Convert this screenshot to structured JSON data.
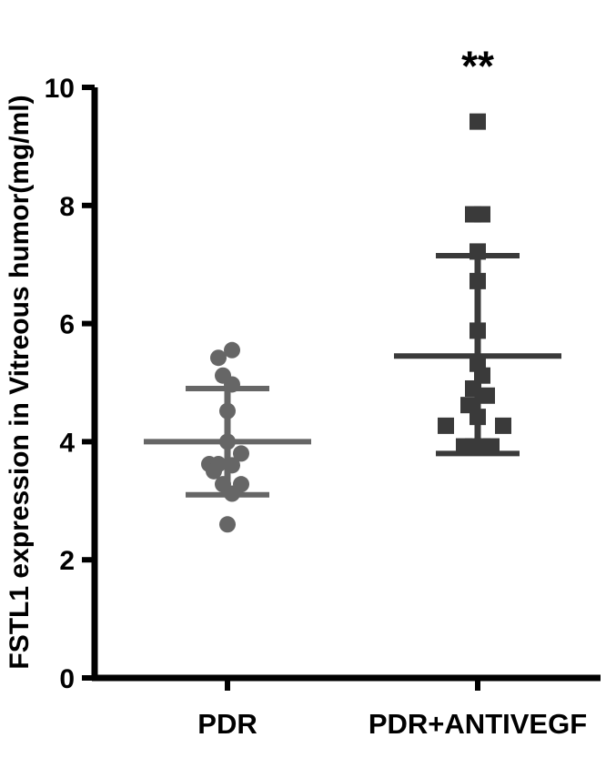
{
  "chart_data": {
    "type": "scatter",
    "title": "",
    "xlabel": "",
    "ylabel": "FSTL1 expression in Vitreous humor(mg/ml)",
    "ylim": [
      0,
      10
    ],
    "yticks": [
      "0",
      "2",
      "4",
      "6",
      "8",
      "10"
    ],
    "categories": [
      "PDR",
      "PDR+ANTIVEGF"
    ],
    "grid": false,
    "legend": "none",
    "series": [
      {
        "category": "PDR",
        "marker": "circle",
        "color": "#666666",
        "points": [
          {
            "offset": -0.1,
            "y": 5.42
          },
          {
            "offset": 0.05,
            "y": 5.55
          },
          {
            "offset": -0.05,
            "y": 5.12
          },
          {
            "offset": 0.05,
            "y": 4.97
          },
          {
            "offset": 0.0,
            "y": 4.52
          },
          {
            "offset": 0.0,
            "y": 4.0
          },
          {
            "offset": -0.2,
            "y": 3.62
          },
          {
            "offset": -0.1,
            "y": 3.62
          },
          {
            "offset": -0.15,
            "y": 3.5
          },
          {
            "offset": 0.15,
            "y": 3.8
          },
          {
            "offset": 0.05,
            "y": 3.6
          },
          {
            "offset": -0.05,
            "y": 3.28
          },
          {
            "offset": 0.15,
            "y": 3.28
          },
          {
            "offset": 0.05,
            "y": 3.12
          },
          {
            "offset": 0.0,
            "y": 2.6
          }
        ],
        "mean": 4.0,
        "sd_upper": 4.9,
        "sd_lower": 3.1
      },
      {
        "category": "PDR+ANTIVEGF",
        "marker": "square",
        "color": "#3a3a3a",
        "points": [
          {
            "offset": 0.0,
            "y": 9.42
          },
          {
            "offset": -0.05,
            "y": 7.85
          },
          {
            "offset": 0.05,
            "y": 7.85
          },
          {
            "offset": 0.0,
            "y": 7.22
          },
          {
            "offset": 0.0,
            "y": 6.72
          },
          {
            "offset": 0.0,
            "y": 5.88
          },
          {
            "offset": 0.0,
            "y": 5.32
          },
          {
            "offset": 0.05,
            "y": 5.12
          },
          {
            "offset": -0.05,
            "y": 4.9
          },
          {
            "offset": 0.1,
            "y": 4.78
          },
          {
            "offset": -0.1,
            "y": 4.62
          },
          {
            "offset": 0.0,
            "y": 4.42
          },
          {
            "offset": -0.35,
            "y": 4.27
          },
          {
            "offset": 0.28,
            "y": 4.27
          },
          {
            "offset": -0.15,
            "y": 3.92
          },
          {
            "offset": -0.05,
            "y": 3.92
          },
          {
            "offset": 0.05,
            "y": 3.92
          },
          {
            "offset": 0.15,
            "y": 3.92
          }
        ],
        "mean": 5.45,
        "sd_upper": 7.15,
        "sd_lower": 3.8
      }
    ],
    "annotations": [
      {
        "text": "**",
        "category": "PDR+ANTIVEGF",
        "y": 10.55
      }
    ]
  }
}
